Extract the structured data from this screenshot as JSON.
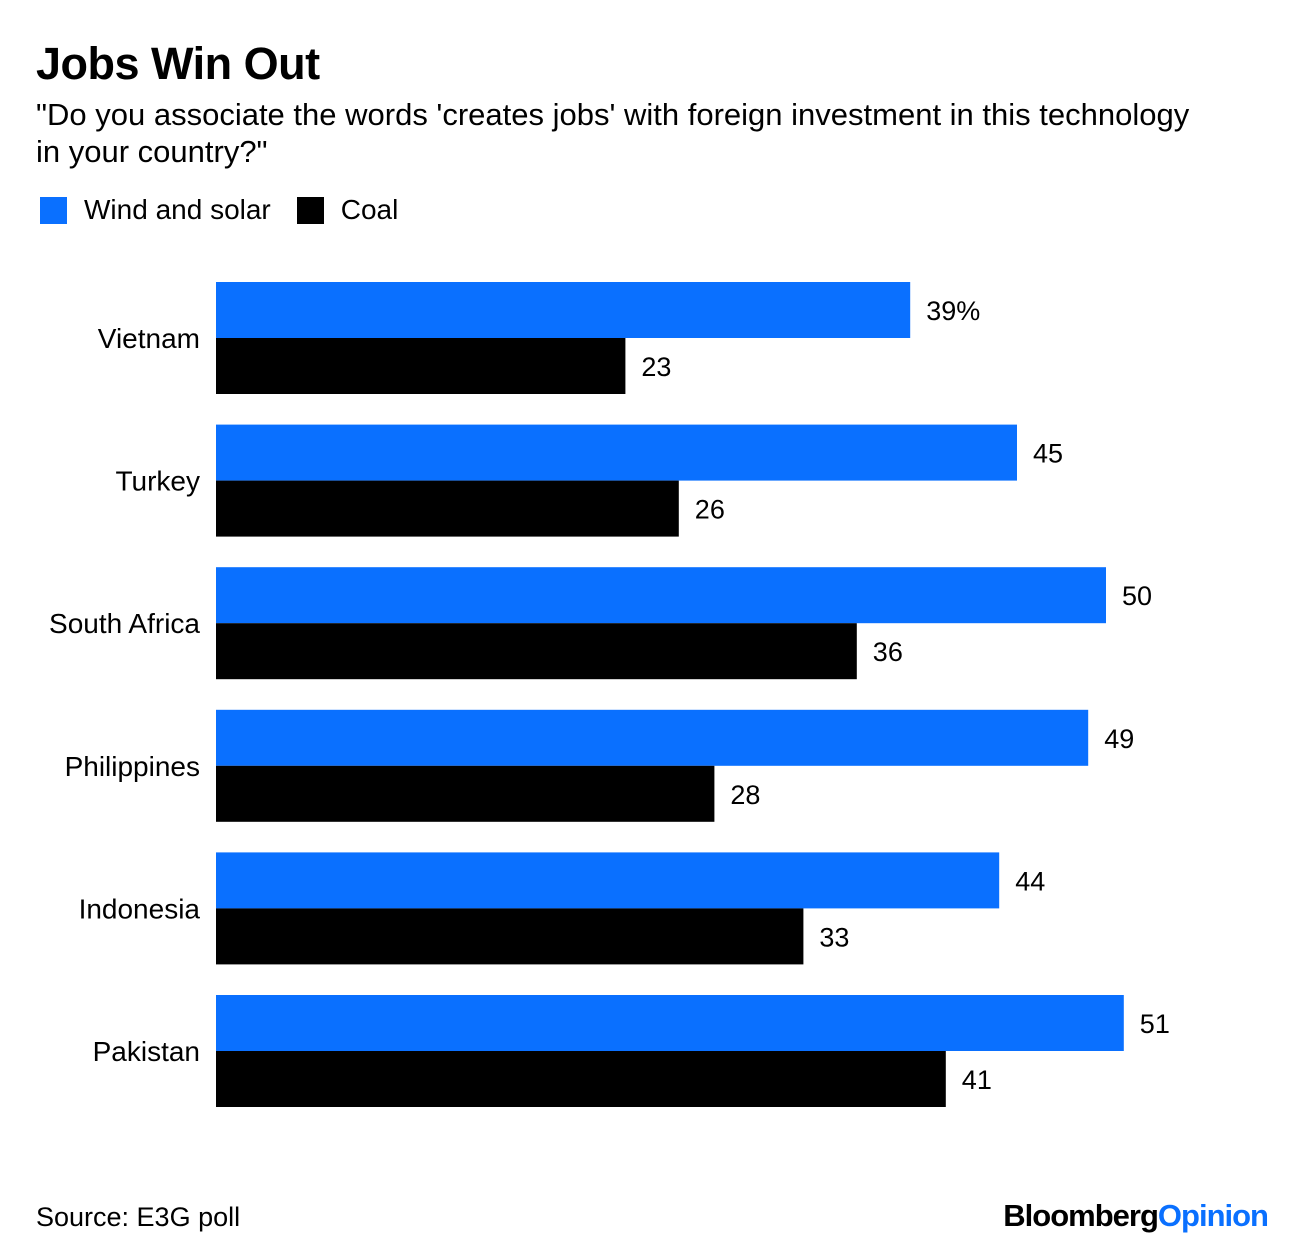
{
  "title": "Jobs Win Out",
  "subtitle": "\"Do you associate the words 'creates jobs' with foreign investment in this technology in your country?\"",
  "source": "Source: E3G poll",
  "logo": {
    "brand": "Bloomberg",
    "section": "Opinion"
  },
  "colors": {
    "wind_solar": "#0a70ff",
    "coal": "#000000"
  },
  "chart_data": {
    "type": "bar",
    "orientation": "horizontal",
    "categories": [
      "Vietnam",
      "Turkey",
      "South Africa",
      "Philippines",
      "Indonesia",
      "Pakistan"
    ],
    "series": [
      {
        "name": "Wind and solar",
        "values": [
          39,
          45,
          50,
          49,
          44,
          51
        ],
        "labels": [
          "39%",
          "45",
          "50",
          "49",
          "44",
          "51"
        ]
      },
      {
        "name": "Coal",
        "values": [
          23,
          26,
          36,
          28,
          33,
          41
        ],
        "labels": [
          "23",
          "26",
          "36",
          "28",
          "33",
          "41"
        ]
      }
    ],
    "xlim": [
      0,
      51
    ],
    "grid": false,
    "legend": "top-left"
  }
}
